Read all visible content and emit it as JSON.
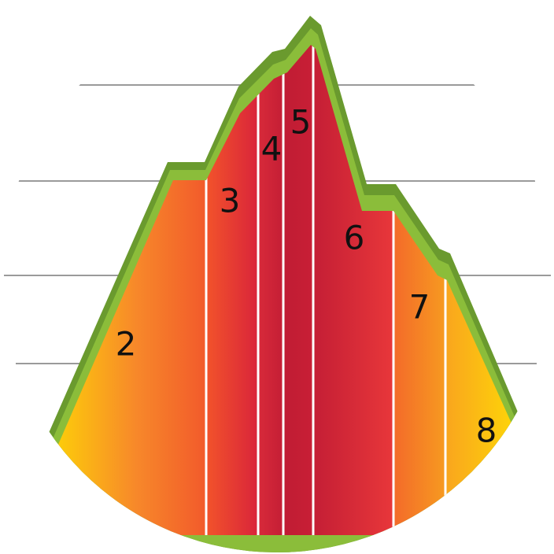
{
  "labels": [
    "2",
    "3",
    "4",
    "5",
    "6",
    "7",
    "8"
  ]
}
